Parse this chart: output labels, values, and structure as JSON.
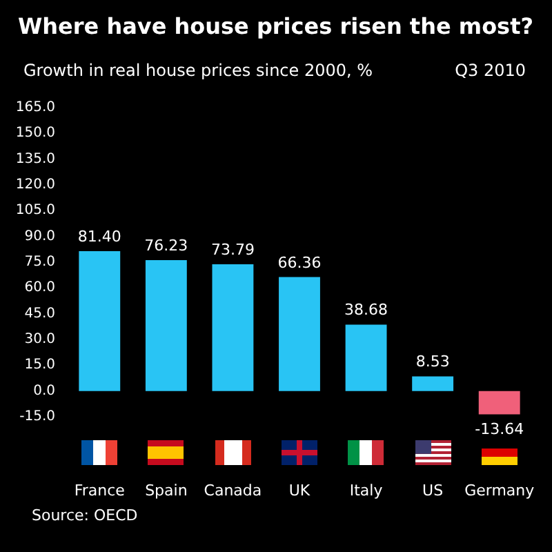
{
  "chart_data": {
    "type": "bar",
    "title": "Where have house prices risen the most?",
    "subtitle": "Growth in real house prices since 2000, %",
    "annotations": [
      "Q3 2010",
      "Source: OECD"
    ],
    "categories": [
      "France",
      "Spain",
      "Canada",
      "UK",
      "Italy",
      "US",
      "Germany"
    ],
    "values": [
      81.4,
      76.23,
      73.79,
      66.36,
      38.68,
      8.53,
      -13.64
    ],
    "colors": [
      "#29c4f4",
      "#29c4f4",
      "#29c4f4",
      "#29c4f4",
      "#29c4f4",
      "#29c4f4",
      "#f0607a"
    ],
    "value_labels": [
      "81.40",
      "76.23",
      "73.79",
      "66.36",
      "38.68",
      "8.53",
      "-13.64"
    ],
    "ylim": [
      -15,
      165
    ],
    "yticks": [
      {
        "value": -15,
        "label": "-15.0"
      },
      {
        "value": 0,
        "label": "0.0"
      },
      {
        "value": 15,
        "label": "15.0"
      },
      {
        "value": 30,
        "label": "30.0"
      },
      {
        "value": 45,
        "label": "45.0"
      },
      {
        "value": 60,
        "label": "60.0"
      },
      {
        "value": 75,
        "label": "75.0"
      },
      {
        "value": 90,
        "label": "90.0"
      },
      {
        "value": 105,
        "label": "105.0"
      },
      {
        "value": 120,
        "label": "120.0"
      },
      {
        "value": 135,
        "label": "135.0"
      },
      {
        "value": 150,
        "label": "150.0"
      },
      {
        "value": 165,
        "label": "165.0"
      }
    ],
    "grid": false
  }
}
